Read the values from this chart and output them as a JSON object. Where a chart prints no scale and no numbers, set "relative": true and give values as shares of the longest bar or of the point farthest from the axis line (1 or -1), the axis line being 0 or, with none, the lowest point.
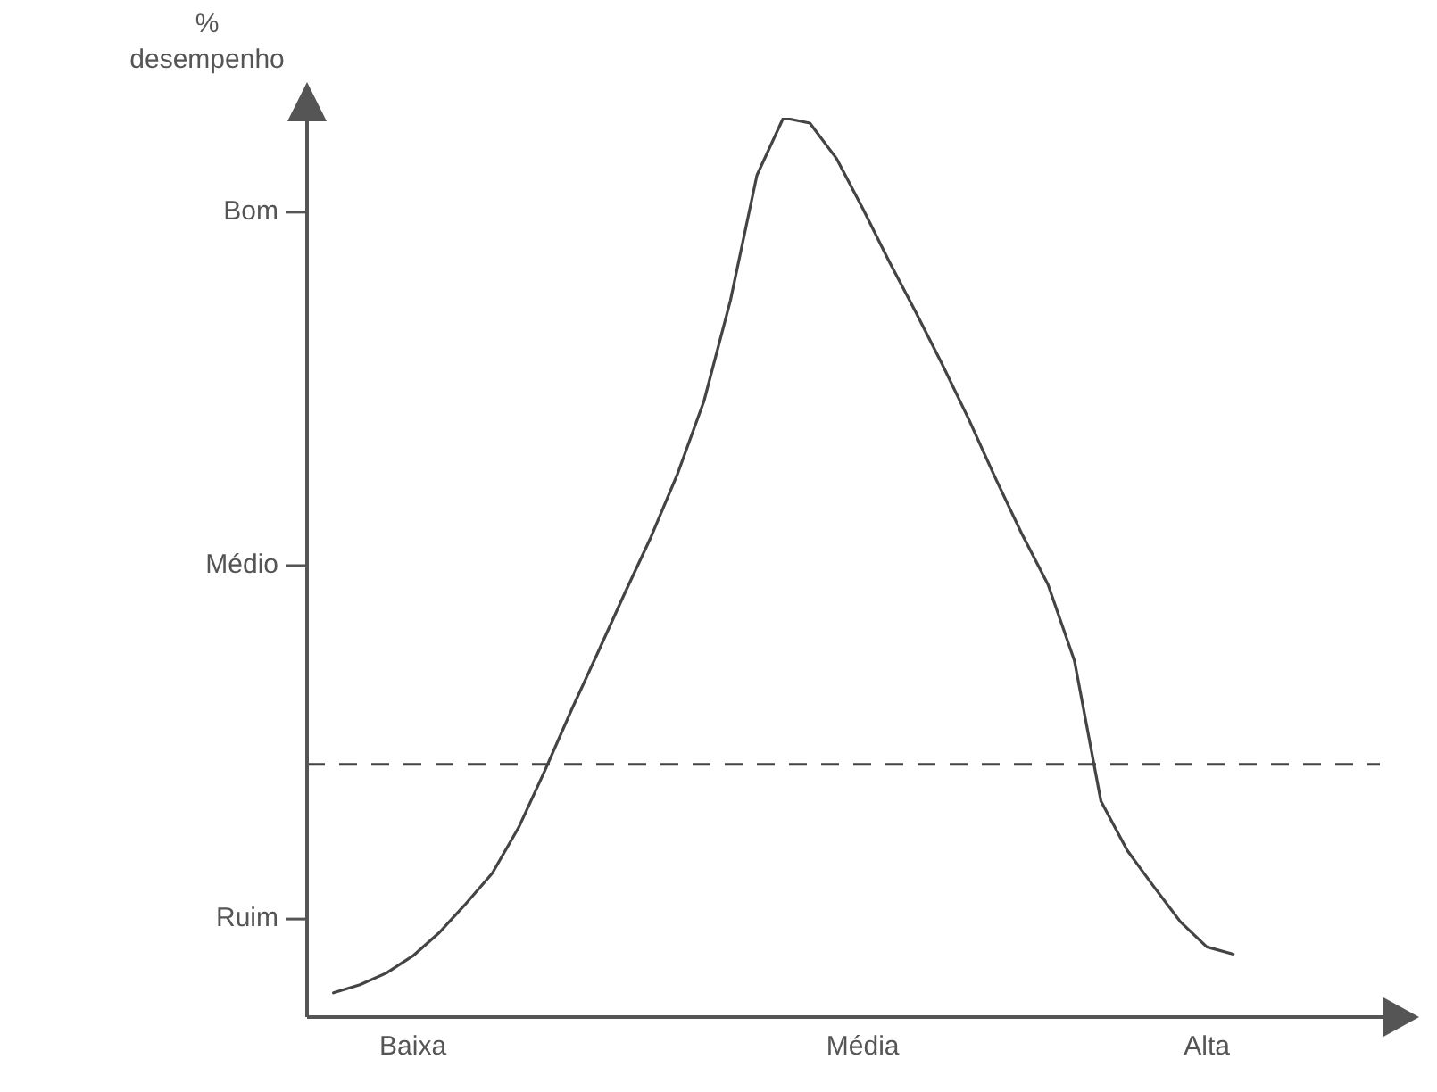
{
  "chart_data": {
    "type": "line",
    "relative": true,
    "ylabel": "% desempenho",
    "categories": [
      null,
      null,
      null,
      null,
      "Baixa",
      null,
      null,
      null,
      null,
      null,
      null,
      null,
      null,
      null,
      null,
      null,
      null,
      null,
      null,
      null,
      null,
      "Média",
      null,
      null,
      null,
      null,
      null,
      null,
      null,
      null,
      null,
      null,
      null,
      null,
      "Alta",
      null,
      null,
      null,
      null,
      null,
      null
    ],
    "series": [
      {
        "color": "#444444",
        "values": [
          null,
          0.027,
          0.036,
          0.049,
          0.068,
          0.094,
          0.126,
          0.16,
          0.211,
          0.275,
          0.342,
          0.406,
          0.471,
          0.534,
          0.604,
          0.685,
          0.797,
          0.936,
          1,
          0.994,
          0.955,
          0.899,
          0.84,
          0.784,
          0.726,
          0.665,
          0.6,
          0.538,
          0.481,
          0.396,
          0.24,
          0.185,
          0.145,
          0.106,
          0.078,
          0.07,
          null,
          null,
          null,
          null,
          null
        ]
      }
    ],
    "ref_lines": [
      {
        "axis": "y",
        "value": 0.281,
        "line_style": "dashed",
        "color": "#444444"
      }
    ],
    "annotations": [
      "Bom",
      "Médio",
      "Ruim"
    ],
    "legend": false,
    "marker": "none",
    "line_style": "solid"
  }
}
